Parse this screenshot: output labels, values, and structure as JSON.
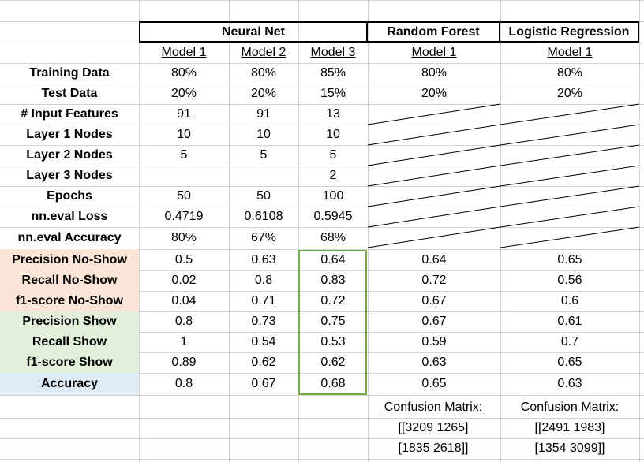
{
  "groups": {
    "neural_net": "Neural Net",
    "random_forest": "Random Forest",
    "logistic_regression": "Logistic Regression"
  },
  "models": [
    "Model 1",
    "Model 2",
    "Model 3",
    "Model 1",
    "Model 1"
  ],
  "rows": [
    {
      "label": "Training Data",
      "values": [
        "80%",
        "80%",
        "85%",
        "80%",
        "80%"
      ]
    },
    {
      "label": "Test Data",
      "values": [
        "20%",
        "20%",
        "15%",
        "20%",
        "20%"
      ]
    },
    {
      "label": "# Input Features",
      "values": [
        "91",
        "91",
        "13",
        "",
        ""
      ]
    },
    {
      "label": "Layer 1 Nodes",
      "values": [
        "10",
        "10",
        "10",
        "",
        ""
      ]
    },
    {
      "label": "Layer 2 Nodes",
      "values": [
        "5",
        "5",
        "5",
        "",
        ""
      ]
    },
    {
      "label": "Layer 3 Nodes",
      "values": [
        "",
        "",
        "2",
        "",
        ""
      ]
    },
    {
      "label": "Epochs",
      "values": [
        "50",
        "50",
        "100",
        "",
        ""
      ]
    },
    {
      "label": "nn.eval Loss",
      "values": [
        "0.4719",
        "0.6108",
        "0.5945",
        "",
        ""
      ]
    },
    {
      "label": "nn.eval Accuracy",
      "values": [
        "80%",
        "67%",
        "68%",
        "",
        ""
      ]
    },
    {
      "label": "Precision No-Show",
      "values": [
        "0.5",
        "0.63",
        "0.64",
        "0.64",
        "0.65"
      ]
    },
    {
      "label": "Recall No-Show",
      "values": [
        "0.02",
        "0.8",
        "0.83",
        "0.72",
        "0.56"
      ]
    },
    {
      "label": "f1-score No-Show",
      "values": [
        "0.04",
        "0.71",
        "0.72",
        "0.67",
        "0.6"
      ]
    },
    {
      "label": "Precision Show",
      "values": [
        "0.8",
        "0.73",
        "0.75",
        "0.67",
        "0.61"
      ]
    },
    {
      "label": "Recall Show",
      "values": [
        "1",
        "0.54",
        "0.53",
        "0.59",
        "0.7"
      ]
    },
    {
      "label": "f1-score Show",
      "values": [
        "0.89",
        "0.62",
        "0.62",
        "0.63",
        "0.65"
      ]
    },
    {
      "label": "Accuracy",
      "values": [
        "0.8",
        "0.67",
        "0.68",
        "0.65",
        "0.63"
      ]
    }
  ],
  "confusion": {
    "random_forest": {
      "title": "Confusion Matrix:",
      "line1": "[[3209 1265]",
      "line2": "[1835 2618]]"
    },
    "logistic_regression": {
      "title": "Confusion Matrix:",
      "line1": "[[2491 1983]",
      "line2": "[1354 3099]]"
    }
  },
  "colors": {
    "gridline": "#d4d4d4",
    "no_show_fill": "#fbe5d6",
    "show_fill": "#e2efda",
    "accuracy_fill": "#ddebf7",
    "highlight_border": "#70ad47"
  }
}
